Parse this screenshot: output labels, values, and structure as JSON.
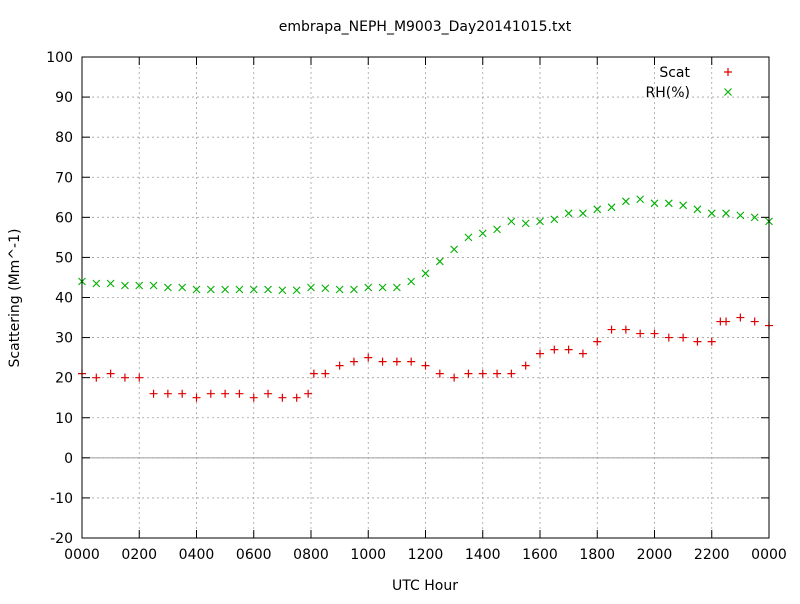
{
  "chart_data": {
    "type": "scatter",
    "title": "embrapa_NEPH_M9003_Day20141015.txt",
    "xlabel": "UTC Hour",
    "ylabel": "Scattering (Mm^-1)",
    "xlim": [
      0,
      24
    ],
    "ylim": [
      -20,
      100
    ],
    "x_tick_labels": [
      "0000",
      "0200",
      "0400",
      "0600",
      "0800",
      "1000",
      "1200",
      "1400",
      "1600",
      "1800",
      "2000",
      "2200",
      "0000"
    ],
    "y_ticks": [
      -20,
      -10,
      0,
      10,
      20,
      30,
      40,
      50,
      60,
      70,
      80,
      90,
      100
    ],
    "grid": true,
    "zero_line": true,
    "legend_position": "top-right",
    "series": [
      {
        "name": "Scat",
        "marker": "+",
        "color": "#e00000",
        "x": [
          0.0,
          0.5,
          1.0,
          1.5,
          2.0,
          2.5,
          3.0,
          3.5,
          4.0,
          4.5,
          5.0,
          5.5,
          6.0,
          6.5,
          7.0,
          7.5,
          7.9,
          8.1,
          8.5,
          9.0,
          9.5,
          10.0,
          10.5,
          11.0,
          11.5,
          12.0,
          12.5,
          13.0,
          13.5,
          14.0,
          14.5,
          15.0,
          15.5,
          16.0,
          16.5,
          17.0,
          17.5,
          18.0,
          18.5,
          19.0,
          19.5,
          20.0,
          20.5,
          21.0,
          21.5,
          22.0,
          22.3,
          22.5,
          23.0,
          23.5,
          24.0
        ],
        "y": [
          21,
          20,
          21,
          20,
          20,
          16,
          16,
          16,
          15,
          16,
          16,
          16,
          15,
          16,
          15,
          15,
          16,
          21,
          21,
          23,
          24,
          25,
          24,
          24,
          24,
          23,
          21,
          20,
          21,
          21,
          21,
          21,
          23,
          26,
          27,
          27,
          26,
          29,
          32,
          32,
          31,
          31,
          30,
          30,
          29,
          29,
          34,
          34,
          35,
          34,
          33
        ]
      },
      {
        "name": "RH(%)",
        "marker": "x",
        "color": "#00b000",
        "x": [
          0.0,
          0.5,
          1.0,
          1.5,
          2.0,
          2.5,
          3.0,
          3.5,
          4.0,
          4.5,
          5.0,
          5.5,
          6.0,
          6.5,
          7.0,
          7.5,
          8.0,
          8.5,
          9.0,
          9.5,
          10.0,
          10.5,
          11.0,
          11.5,
          12.0,
          12.5,
          13.0,
          13.5,
          14.0,
          14.5,
          15.0,
          15.5,
          16.0,
          16.5,
          17.0,
          17.5,
          18.0,
          18.5,
          19.0,
          19.5,
          20.0,
          20.5,
          21.0,
          21.5,
          22.0,
          22.5,
          23.0,
          23.5,
          24.0
        ],
        "y": [
          44,
          43.5,
          43.5,
          43,
          43,
          43,
          42.5,
          42.5,
          42,
          42,
          42,
          42,
          42,
          42,
          41.8,
          41.8,
          42.5,
          42.3,
          42,
          42,
          42.5,
          42.5,
          42.5,
          44,
          46,
          49,
          52,
          55,
          56,
          57,
          59,
          58.5,
          59,
          59.5,
          61,
          61,
          62,
          62.5,
          64,
          64.5,
          63.5,
          63.5,
          63,
          62,
          61,
          61,
          60.5,
          60,
          59
        ]
      }
    ]
  }
}
